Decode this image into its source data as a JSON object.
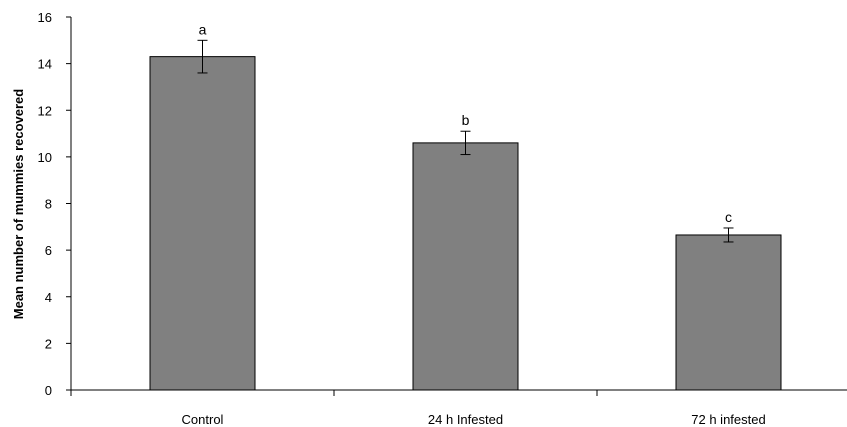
{
  "chart_data": {
    "type": "bar",
    "categories": [
      "Control",
      "24 h Infested",
      "72 h infested"
    ],
    "series": [
      {
        "values": [
          14.3,
          10.6,
          6.65
        ]
      }
    ],
    "error": [
      0.7,
      0.5,
      0.3
    ],
    "significance": [
      "a",
      "b",
      "c"
    ],
    "ylabel": "Mean number of mummies recovered",
    "xlabel": "",
    "ylim": [
      0,
      16
    ],
    "yticks": [
      0,
      2,
      4,
      6,
      8,
      10,
      12,
      14,
      16
    ],
    "grid": false,
    "legend": "none",
    "bar_color": "#808080"
  }
}
